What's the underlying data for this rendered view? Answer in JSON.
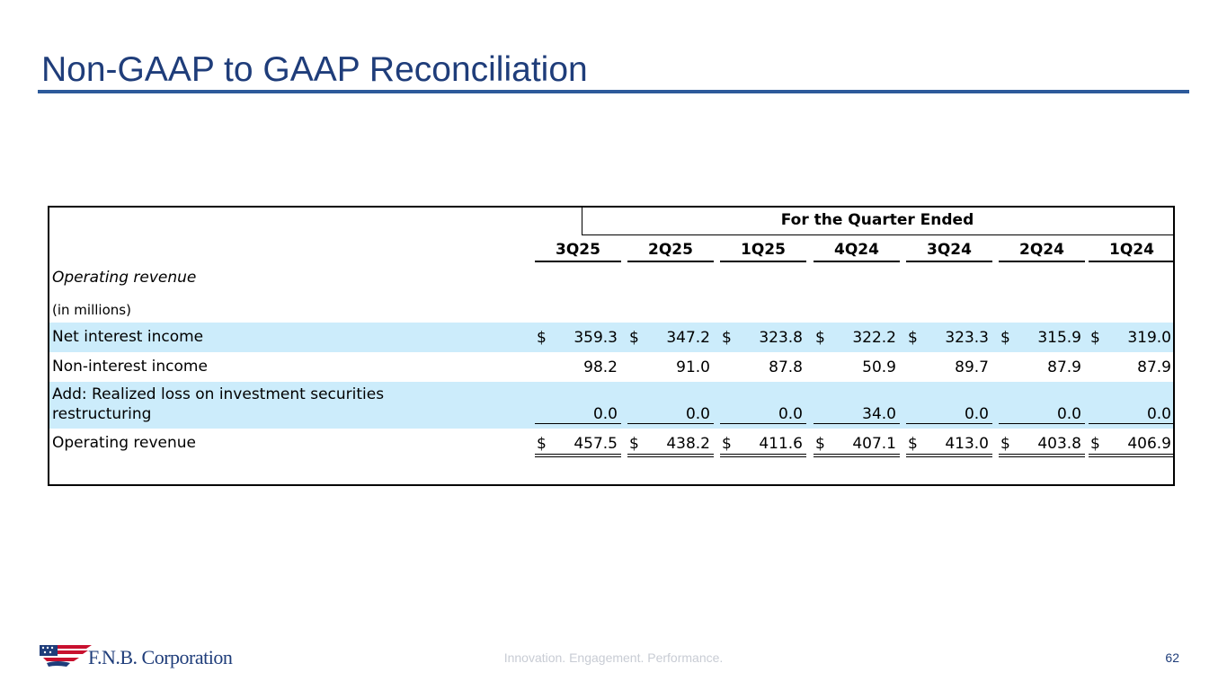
{
  "slide": {
    "title": "Non-GAAP to GAAP Reconciliation",
    "tagline": "Innovation. Engagement. Performance.",
    "page_number": "62",
    "logo_text": "F.N.B. Corporation"
  },
  "table": {
    "group_header": "For the Quarter Ended",
    "columns": [
      "3Q25",
      "2Q25",
      "1Q25",
      "4Q24",
      "3Q24",
      "2Q24",
      "1Q24"
    ],
    "section_title": "Operating revenue",
    "units": "(in millions)",
    "rows": [
      {
        "label": "Net interest income",
        "currency": "$",
        "values": [
          "359.3",
          "347.2",
          "323.8",
          "322.2",
          "323.3",
          "315.9",
          "319.0"
        ]
      },
      {
        "label": "Non-interest income",
        "currency": "",
        "values": [
          "98.2",
          "91.0",
          "87.8",
          "50.9",
          "89.7",
          "87.9",
          "87.9"
        ]
      },
      {
        "label_line1": "Add: Realized loss on investment securities",
        "label_line2": "restructuring",
        "currency": "",
        "values": [
          "0.0",
          "0.0",
          "0.0",
          "34.0",
          "0.0",
          "0.0",
          "0.0"
        ]
      },
      {
        "label": "Operating revenue",
        "currency": "$",
        "values": [
          "457.5",
          "438.2",
          "411.6",
          "407.1",
          "413.0",
          "403.8",
          "406.9"
        ]
      }
    ]
  }
}
